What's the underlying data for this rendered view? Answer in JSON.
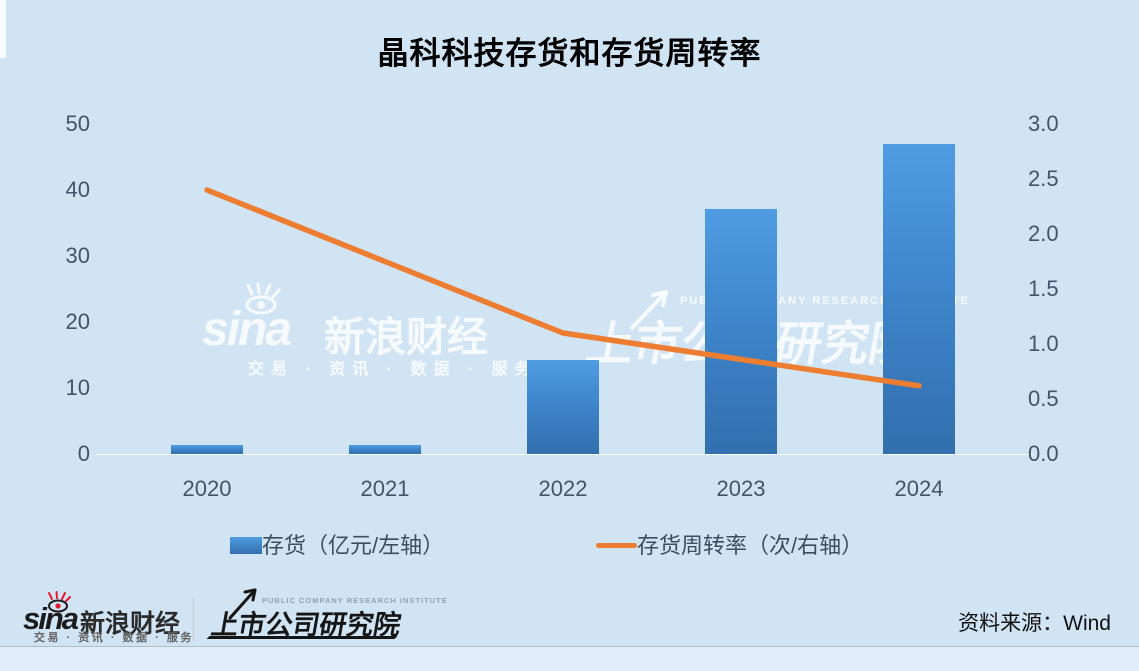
{
  "title": "晶科科技存货和存货周转率",
  "chart_data": {
    "type": "bar+line combo",
    "title": "晶科科技存货和存货周转率",
    "categories": [
      "2020",
      "2021",
      "2022",
      "2023",
      "2024"
    ],
    "series": [
      {
        "name": "存货（亿元/左轴）",
        "type": "bar",
        "axis": "left",
        "values": [
          1.4,
          1.4,
          14.2,
          37.1,
          47.0
        ],
        "color_top": "#509ce2",
        "color_bottom": "#326fae"
      },
      {
        "name": "存货周转率（次/右轴）",
        "type": "line",
        "axis": "right",
        "values": [
          2.4,
          1.75,
          1.1,
          0.86,
          0.62
        ],
        "color": "#ed7d31"
      }
    ],
    "left_axis": {
      "ticks": [
        "50",
        "40",
        "30",
        "20",
        "10",
        "0"
      ],
      "min": 0,
      "max": 50
    },
    "right_axis": {
      "ticks": [
        "3.0",
        "2.5",
        "2.0",
        "1.5",
        "1.0",
        "0.5",
        "0.0"
      ],
      "min": 0,
      "max": 3.0
    },
    "grid": false,
    "legend_position": "bottom"
  },
  "watermark": {
    "sina_word": "sina",
    "sina_name": "新浪财经",
    "sina_tagline": "交易 · 资讯 · 数据 · 服务",
    "institute_en": "PUBLIC COMPANY RESEARCH INSTITUTE",
    "institute_name": "上市公司研究院"
  },
  "footer": {
    "sina_word": "sina",
    "sina_name": "新浪财经",
    "sina_tagline": "交易 · 资讯 · 数据 · 服务",
    "institute_en": "PUBLIC COMPANY RESEARCH INSTITUTE",
    "institute_name": "上市公司研究院",
    "source": "资料来源：Wind"
  },
  "colors": {
    "background": "#d1e4f4",
    "bar_top": "#509ce2",
    "bar_bottom": "#326fae",
    "line": "#ed7d31",
    "axis_text": "#44546a",
    "title_text": "#000000",
    "sina_red": "#e6162d"
  }
}
